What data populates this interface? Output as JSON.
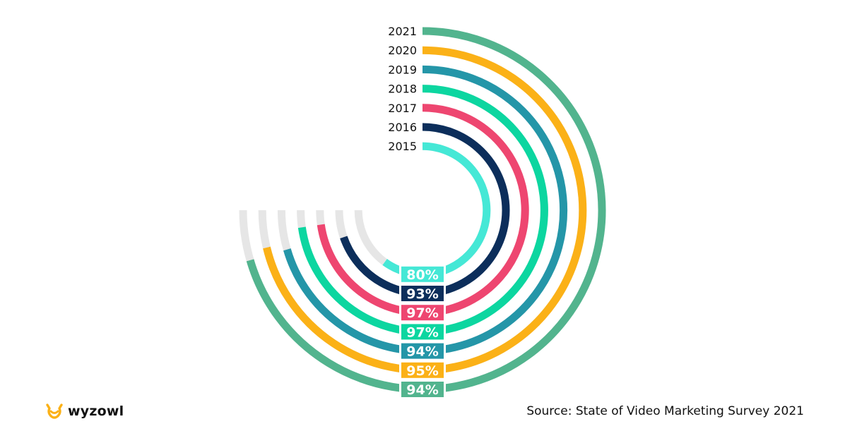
{
  "chart_data": {
    "type": "radial-bar",
    "title": "",
    "series": [
      {
        "year": "2021",
        "value": 94,
        "label": "94%",
        "color": "#52B48E"
      },
      {
        "year": "2020",
        "value": 95,
        "label": "95%",
        "color": "#FBB117"
      },
      {
        "year": "2019",
        "value": 94,
        "label": "94%",
        "color": "#2496A8"
      },
      {
        "year": "2018",
        "value": 97,
        "label": "97%",
        "color": "#0CD6A0"
      },
      {
        "year": "2017",
        "value": 97,
        "label": "97%",
        "color": "#EE4670"
      },
      {
        "year": "2016",
        "value": 93,
        "label": "93%",
        "color": "#0C2E5B"
      },
      {
        "year": "2015",
        "value": 80,
        "label": "80%",
        "color": "#45E8D6"
      }
    ],
    "track_color": "#E6E6E6",
    "value_max": 100
  },
  "brand": {
    "name": "wyzowl",
    "logo_color": "#FBB117"
  },
  "footer": {
    "source": "Source: State of Video Marketing Survey 2021"
  }
}
